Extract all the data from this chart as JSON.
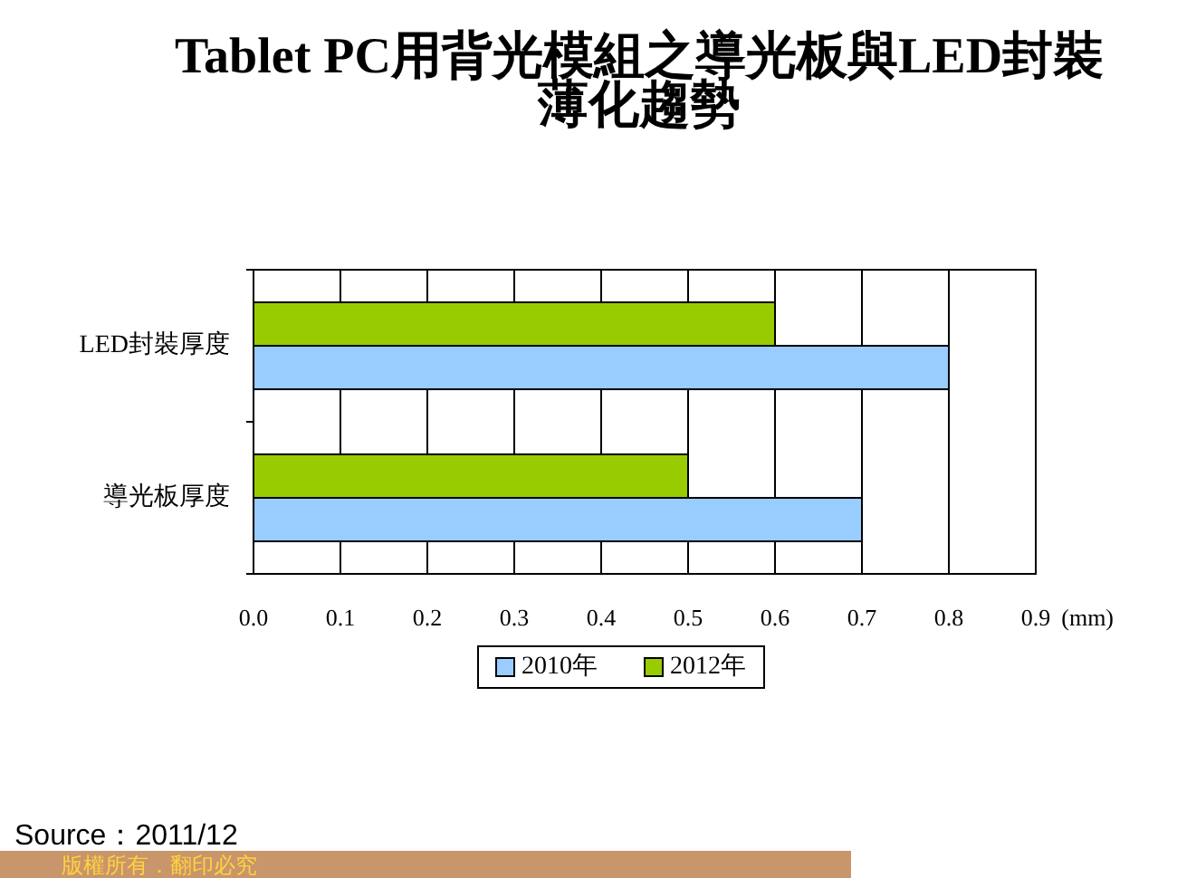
{
  "chart_data": {
    "type": "bar",
    "orientation": "horizontal",
    "title": "Tablet PC用背光模組之導光板與LED封裝薄化趨勢",
    "xlabel": "(mm)",
    "categories": [
      "LED封裝厚度",
      "導光板厚度"
    ],
    "series": [
      {
        "name": "2010年",
        "color": "#99ccff",
        "values": [
          0.8,
          0.7
        ]
      },
      {
        "name": "2012年",
        "color": "#99cc00",
        "values": [
          0.6,
          0.5
        ]
      }
    ],
    "xlim": [
      0,
      0.9
    ],
    "xticks": [
      {
        "value": 0,
        "label": "0.0"
      },
      0.1,
      0.2,
      0.3,
      0.4,
      0.5,
      0.6,
      0.7,
      0.8,
      0.9
    ],
    "grid": "x",
    "legend": "bottom",
    "annotations": [
      "Source：2011/12",
      "版權所有．翻印必究"
    ]
  }
}
